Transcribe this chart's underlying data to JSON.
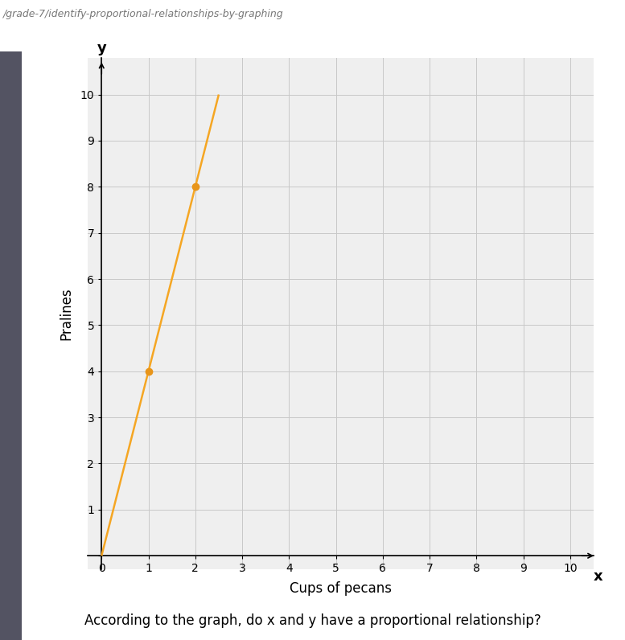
{
  "title": "/grade-7/identify-proportional-relationships-by-graphing",
  "xlabel": "Cups of pecans",
  "ylabel": "Pralines",
  "xlim": [
    0,
    10
  ],
  "ylim": [
    0,
    10
  ],
  "xticks": [
    0,
    1,
    2,
    3,
    4,
    5,
    6,
    7,
    8,
    9,
    10
  ],
  "yticks": [
    1,
    2,
    3,
    4,
    5,
    6,
    7,
    8,
    9,
    10
  ],
  "points_x": [
    1,
    2
  ],
  "points_y": [
    4,
    8
  ],
  "line_x": [
    0,
    2.5
  ],
  "line_y": [
    0,
    10
  ],
  "line_color": "#F5A623",
  "point_color": "#E8951A",
  "grid_color": "#C8C8C8",
  "bg_color": "#FFFFFF",
  "plot_bg_color": "#EFEFEF",
  "title_fontsize": 9,
  "axis_label_fontsize": 12,
  "tick_fontsize": 11,
  "question_text": "According to the graph, do x and y have a proportional relationship?",
  "question_fontsize": 12,
  "point_size": 6,
  "line_width": 1.8
}
